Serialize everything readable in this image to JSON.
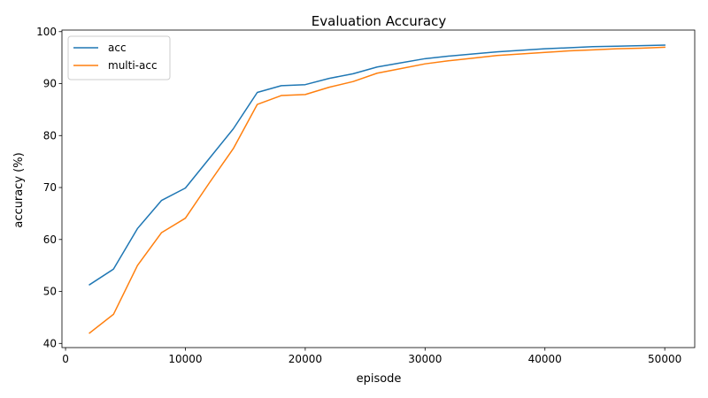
{
  "chart_data": {
    "type": "line",
    "title": "Evaluation Accuracy",
    "xlabel": "episode",
    "ylabel": "accuracy (%)",
    "xlim": [
      -300,
      52500
    ],
    "ylim": [
      39.2,
      100.3
    ],
    "xticks": [
      0,
      10000,
      20000,
      30000,
      40000,
      50000
    ],
    "yticks": [
      40,
      50,
      60,
      70,
      80,
      90,
      100
    ],
    "grid": false,
    "legend_position": "upper-left",
    "x": [
      2000,
      4000,
      6000,
      8000,
      10000,
      12000,
      14000,
      16000,
      18000,
      20000,
      22000,
      24000,
      26000,
      28000,
      30000,
      32000,
      34000,
      36000,
      38000,
      40000,
      42000,
      44000,
      46000,
      48000,
      50000
    ],
    "series": [
      {
        "name": "acc",
        "color": "#1f77b4",
        "values": [
          51.3,
          54.3,
          62.1,
          67.5,
          69.9,
          75.6,
          81.3,
          88.3,
          89.6,
          89.8,
          91.0,
          91.9,
          93.2,
          94.0,
          94.8,
          95.3,
          95.7,
          96.1,
          96.4,
          96.7,
          96.9,
          97.1,
          97.2,
          97.3,
          97.4
        ]
      },
      {
        "name": "multi-acc",
        "color": "#ff7f0e",
        "values": [
          42.0,
          45.6,
          55.0,
          61.3,
          64.1,
          70.9,
          77.5,
          86.0,
          87.7,
          87.9,
          89.3,
          90.4,
          92.0,
          92.9,
          93.8,
          94.4,
          94.9,
          95.4,
          95.7,
          96.0,
          96.3,
          96.5,
          96.7,
          96.8,
          97.0
        ]
      }
    ]
  }
}
